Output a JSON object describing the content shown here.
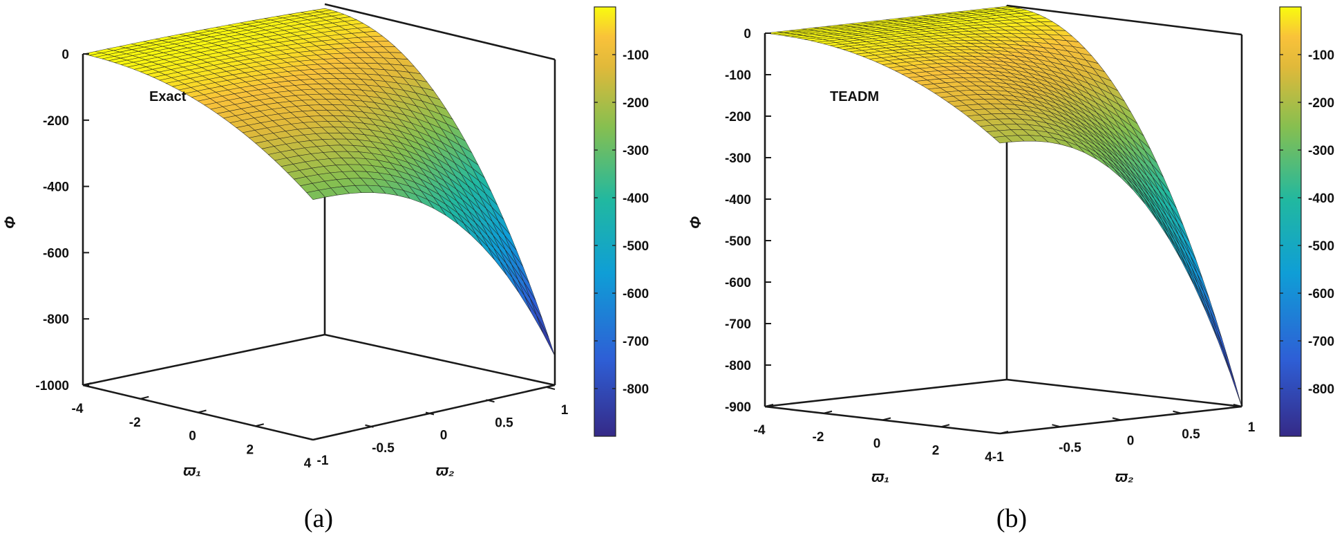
{
  "chart_data": [
    {
      "type": "surface3d",
      "panel_label": "(a)",
      "annotation": "Exact",
      "zlabel": "Φ",
      "xlabel": "ϖ₁",
      "ylabel": "ϖ₂",
      "xlim": [
        -4,
        4
      ],
      "ylim": [
        -1,
        1
      ],
      "zlim": [
        -1000,
        0
      ],
      "xticks": [
        "-4",
        "-2",
        "0",
        "2",
        "4"
      ],
      "yticks": [
        "-1",
        "-0.5",
        "0",
        "0.5",
        "1"
      ],
      "zticks": [
        "0",
        "-200",
        "-400",
        "-600",
        "-800",
        "-1000"
      ],
      "corner_values": {
        "at_x-4_y-1": 0,
        "at_x4_y-1": -275,
        "at_x-4_y1": -15,
        "at_x4_y1": -900
      },
      "colorbar": {
        "ticks": [
          "-100",
          "-200",
          "-300",
          "-400",
          "-500",
          "-600",
          "-700",
          "-800"
        ],
        "range": [
          -900,
          0
        ]
      }
    },
    {
      "type": "surface3d",
      "panel_label": "(b)",
      "annotation": "TEADM",
      "zlabel": "Φ",
      "xlabel": "ϖ₁",
      "ylabel": "ϖ₂",
      "xlim": [
        -4,
        4
      ],
      "ylim": [
        -1,
        1
      ],
      "zlim": [
        -900,
        0
      ],
      "xticks": [
        "-4",
        "-2",
        "0",
        "2",
        "4-1"
      ],
      "yticks": [
        "-0.5",
        "0",
        "0.5",
        "1"
      ],
      "zticks": [
        "0",
        "-100",
        "-200",
        "-300",
        "-400",
        "-500",
        "-600",
        "-700",
        "-800",
        "-900"
      ],
      "corner_values": {
        "at_x-4_y-1": 0,
        "at_x4_y-1": -200,
        "at_x-4_y1": 0,
        "at_x4_y1": -900
      },
      "colorbar": {
        "ticks": [
          "-100",
          "-200",
          "-300",
          "-400",
          "-500",
          "-600",
          "-700",
          "-800"
        ],
        "range": [
          -900,
          0
        ]
      }
    }
  ]
}
